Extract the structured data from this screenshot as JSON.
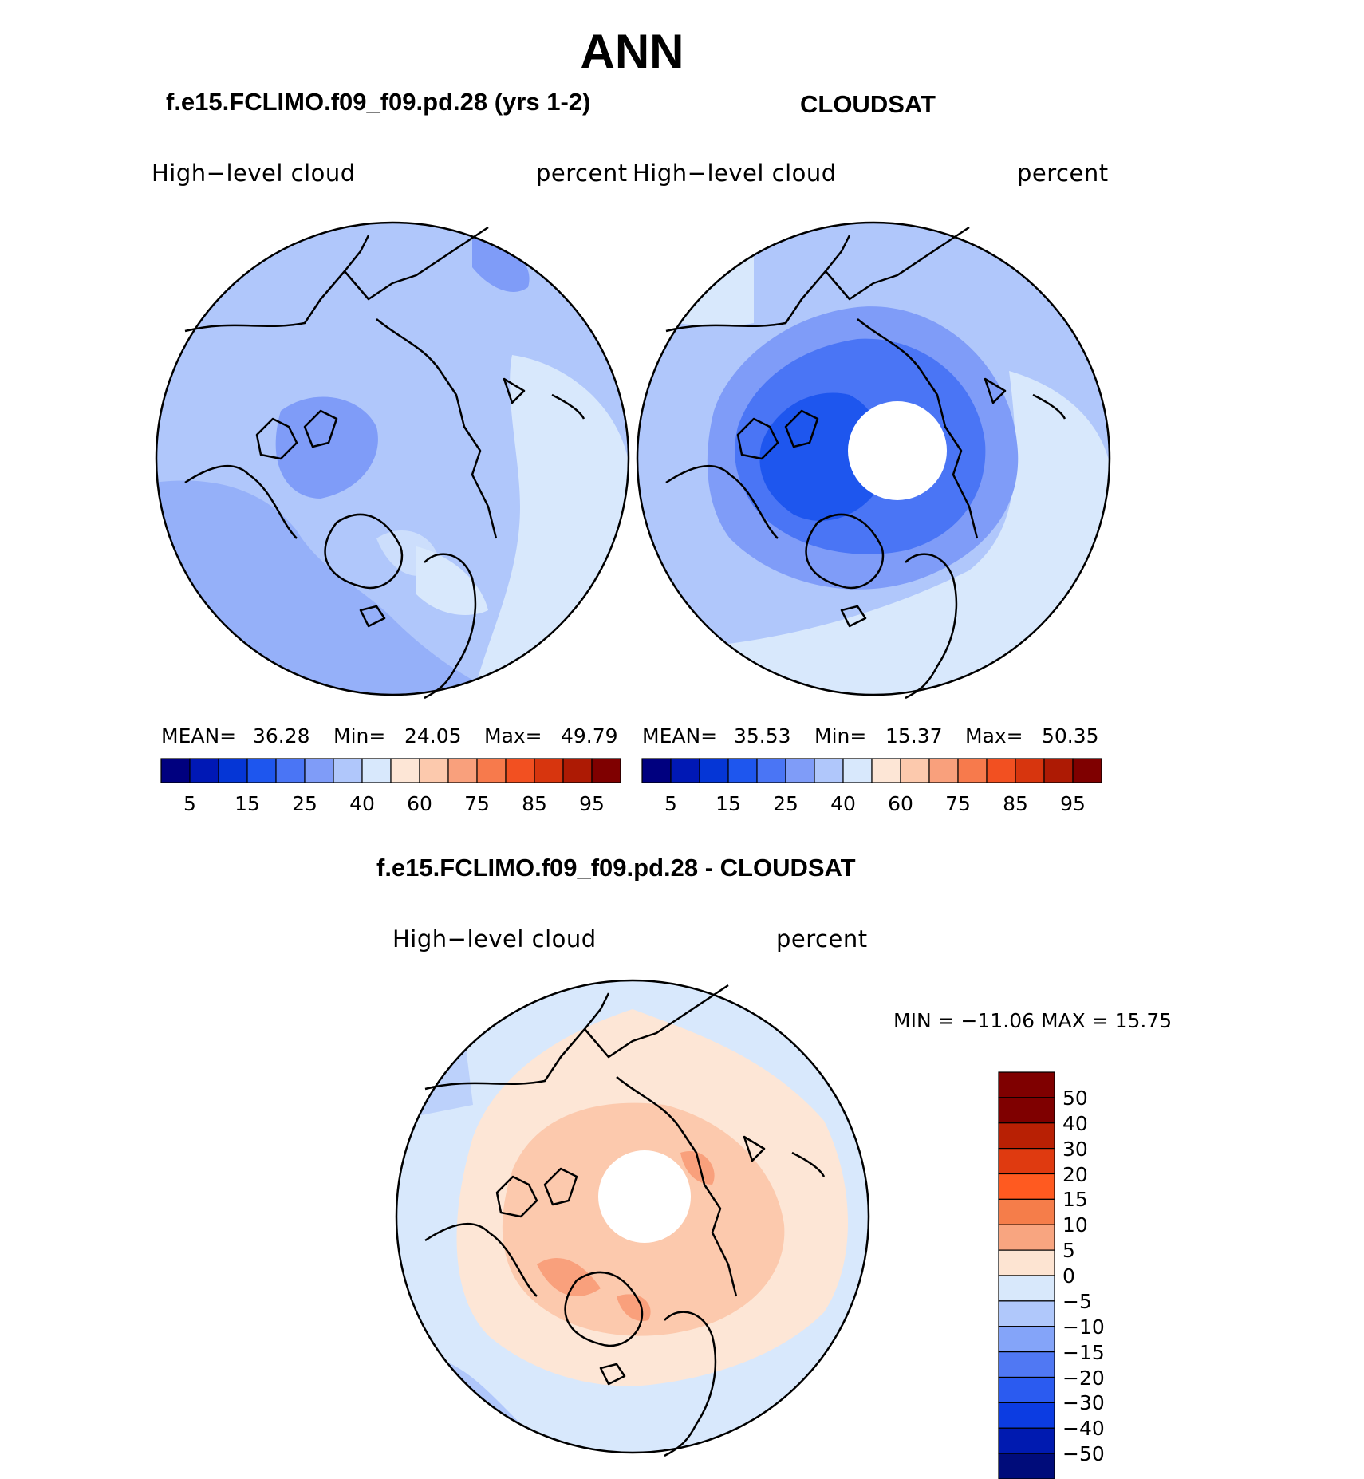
{
  "title": "ANN",
  "panels": [
    {
      "id": "model",
      "case_title": "f.e15.FCLIMO.f09_f09.pd.28 (yrs 1-2)",
      "variable_label": "High−level cloud",
      "units_label": "percent",
      "stats": {
        "mean_label": "MEAN=",
        "mean": "36.28",
        "min_label": "Min=",
        "min": "24.05",
        "max_label": "Max=",
        "max": "49.79"
      },
      "missing_pole": false
    },
    {
      "id": "obs",
      "case_title": "CLOUDSAT",
      "variable_label": "High−level cloud",
      "units_label": "percent",
      "stats": {
        "mean_label": "MEAN=",
        "mean": "35.53",
        "min_label": "Min=",
        "min": "15.37",
        "max_label": "Max=",
        "max": "50.35"
      },
      "missing_pole": true
    }
  ],
  "colorbar_abs": {
    "colors": [
      "#00007f",
      "#0018b5",
      "#0536d6",
      "#1e56ee",
      "#4a75f5",
      "#7f9cf8",
      "#b0c7fb",
      "#d8e8fc",
      "#fde6d6",
      "#fcc9ad",
      "#f9a07c",
      "#f77a4c",
      "#f25021",
      "#d7350e",
      "#ad1a04",
      "#7f0000"
    ],
    "tick_labels": [
      "5",
      "15",
      "25",
      "40",
      "60",
      "75",
      "85",
      "95"
    ]
  },
  "difference": {
    "title": "f.e15.FCLIMO.f09_f09.pd.28 - CLOUDSAT",
    "variable_label": "High−level cloud",
    "units_label": "percent",
    "minmax": "MIN = −11.06 MAX =   15.75",
    "colorbar": {
      "colors_top_to_bottom": [
        "#7f0000",
        "#b82004",
        "#df3a10",
        "#ff5a20",
        "#f57d4a",
        "#f8a580",
        "#fde4d2",
        "#d8e8fb",
        "#b0c8fb",
        "#84a4f9",
        "#5078f3",
        "#2b5bf0",
        "#0c3ce2",
        "#001ab0",
        "#000c7a"
      ],
      "tick_labels": [
        "50",
        "40",
        "30",
        "20",
        "15",
        "10",
        "5",
        "0",
        "−5",
        "−10",
        "−15",
        "−20",
        "−30",
        "−40",
        "−50"
      ]
    }
  },
  "map_colors": {
    "abs_base": "#b0c7fb",
    "abs_light": "#d8e8fc",
    "abs_mid": "#7f9cf8",
    "abs_dark": "#4a75f5",
    "abs_darker": "#1e56ee",
    "diff_base": "#fde6d6",
    "diff_mid": "#fcc9ad",
    "diff_dark": "#f9a07c",
    "diff_neg1": "#d8e8fc",
    "diff_neg2": "#b0c7fb",
    "coast": "#000000"
  }
}
